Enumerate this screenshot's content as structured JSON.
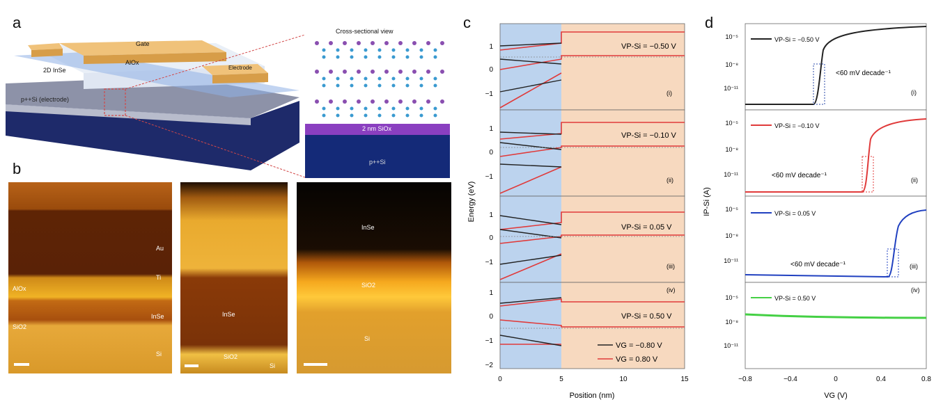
{
  "panels": {
    "a": "a",
    "b": "b",
    "c": "c",
    "d": "d"
  },
  "panel_a": {
    "gate": "Gate",
    "alox": "AlOx",
    "insE": "2D InSe",
    "electrode": "Electrode",
    "substrate": "p++Si (electrode)",
    "cross_title": "Cross-sectional view",
    "sio2": "2 nm SiOx",
    "psi": "p++Si"
  },
  "panel_b": {
    "img1": {
      "au": "Au",
      "ti": "Ti",
      "alox": "AlOx",
      "inse": "InSe",
      "sio2": "SiO2",
      "si": "Si"
    },
    "img2": {
      "inse": "InSe",
      "sio2": "SiO2",
      "si": "Si"
    },
    "img3": {
      "inse": "InSe",
      "sio2": "SiO2",
      "si": "Si"
    }
  },
  "panel_c": {
    "ylabel": "Energy (eV)",
    "xlabel": "Position (nm)",
    "xticks": [
      "0",
      "5",
      "10",
      "15"
    ],
    "subpanels": [
      {
        "label": "VP-Si = −0.50 V",
        "roman": "(i)",
        "yticks": [
          "1",
          "0",
          "−1"
        ]
      },
      {
        "label": "VP-Si = −0.10 V",
        "roman": "(ii)",
        "yticks": [
          "1",
          "0",
          "−1"
        ]
      },
      {
        "label": "VP-Si = 0.05 V",
        "roman": "(iii)",
        "yticks": [
          "1",
          "0",
          "−1"
        ]
      },
      {
        "label": "VP-Si = 0.50 V",
        "roman": "(iv)",
        "yticks": [
          "1",
          "0",
          "−1",
          "−2"
        ]
      }
    ],
    "legend": [
      "VG = −0.80 V",
      "VG = 0.80 V"
    ]
  },
  "panel_d": {
    "ylabel": "IP-Si (A)",
    "xlabel": "VG (V)",
    "xticks": [
      "−0.8",
      "−0.4",
      "0",
      "0.4",
      "0.8"
    ],
    "subpanels": [
      {
        "label": "VP-Si = −0.50 V",
        "roman": "(i)",
        "slope": "<60 mV decade⁻¹",
        "color": "#222222"
      },
      {
        "label": "VP-Si = −0.10 V",
        "roman": "(ii)",
        "slope": "<60 mV decade⁻¹",
        "color": "#e03a3a"
      },
      {
        "label": "VP-Si = 0.05 V",
        "roman": "(iii)",
        "slope": "<60 mV decade⁻¹",
        "color": "#2040c0"
      },
      {
        "label": "VP-Si = 0.50 V",
        "roman": "(iv)",
        "slope": "",
        "color": "#44d044"
      }
    ],
    "yticks": [
      "10⁻⁵",
      "10⁻⁸",
      "10⁻¹¹"
    ]
  },
  "colors": {
    "gate": "#e9b86b",
    "substrate": "#1e2a6a",
    "blue_region": "#bcd3ee",
    "orange_region": "#f7d9bf",
    "red": "#e03a3a"
  }
}
